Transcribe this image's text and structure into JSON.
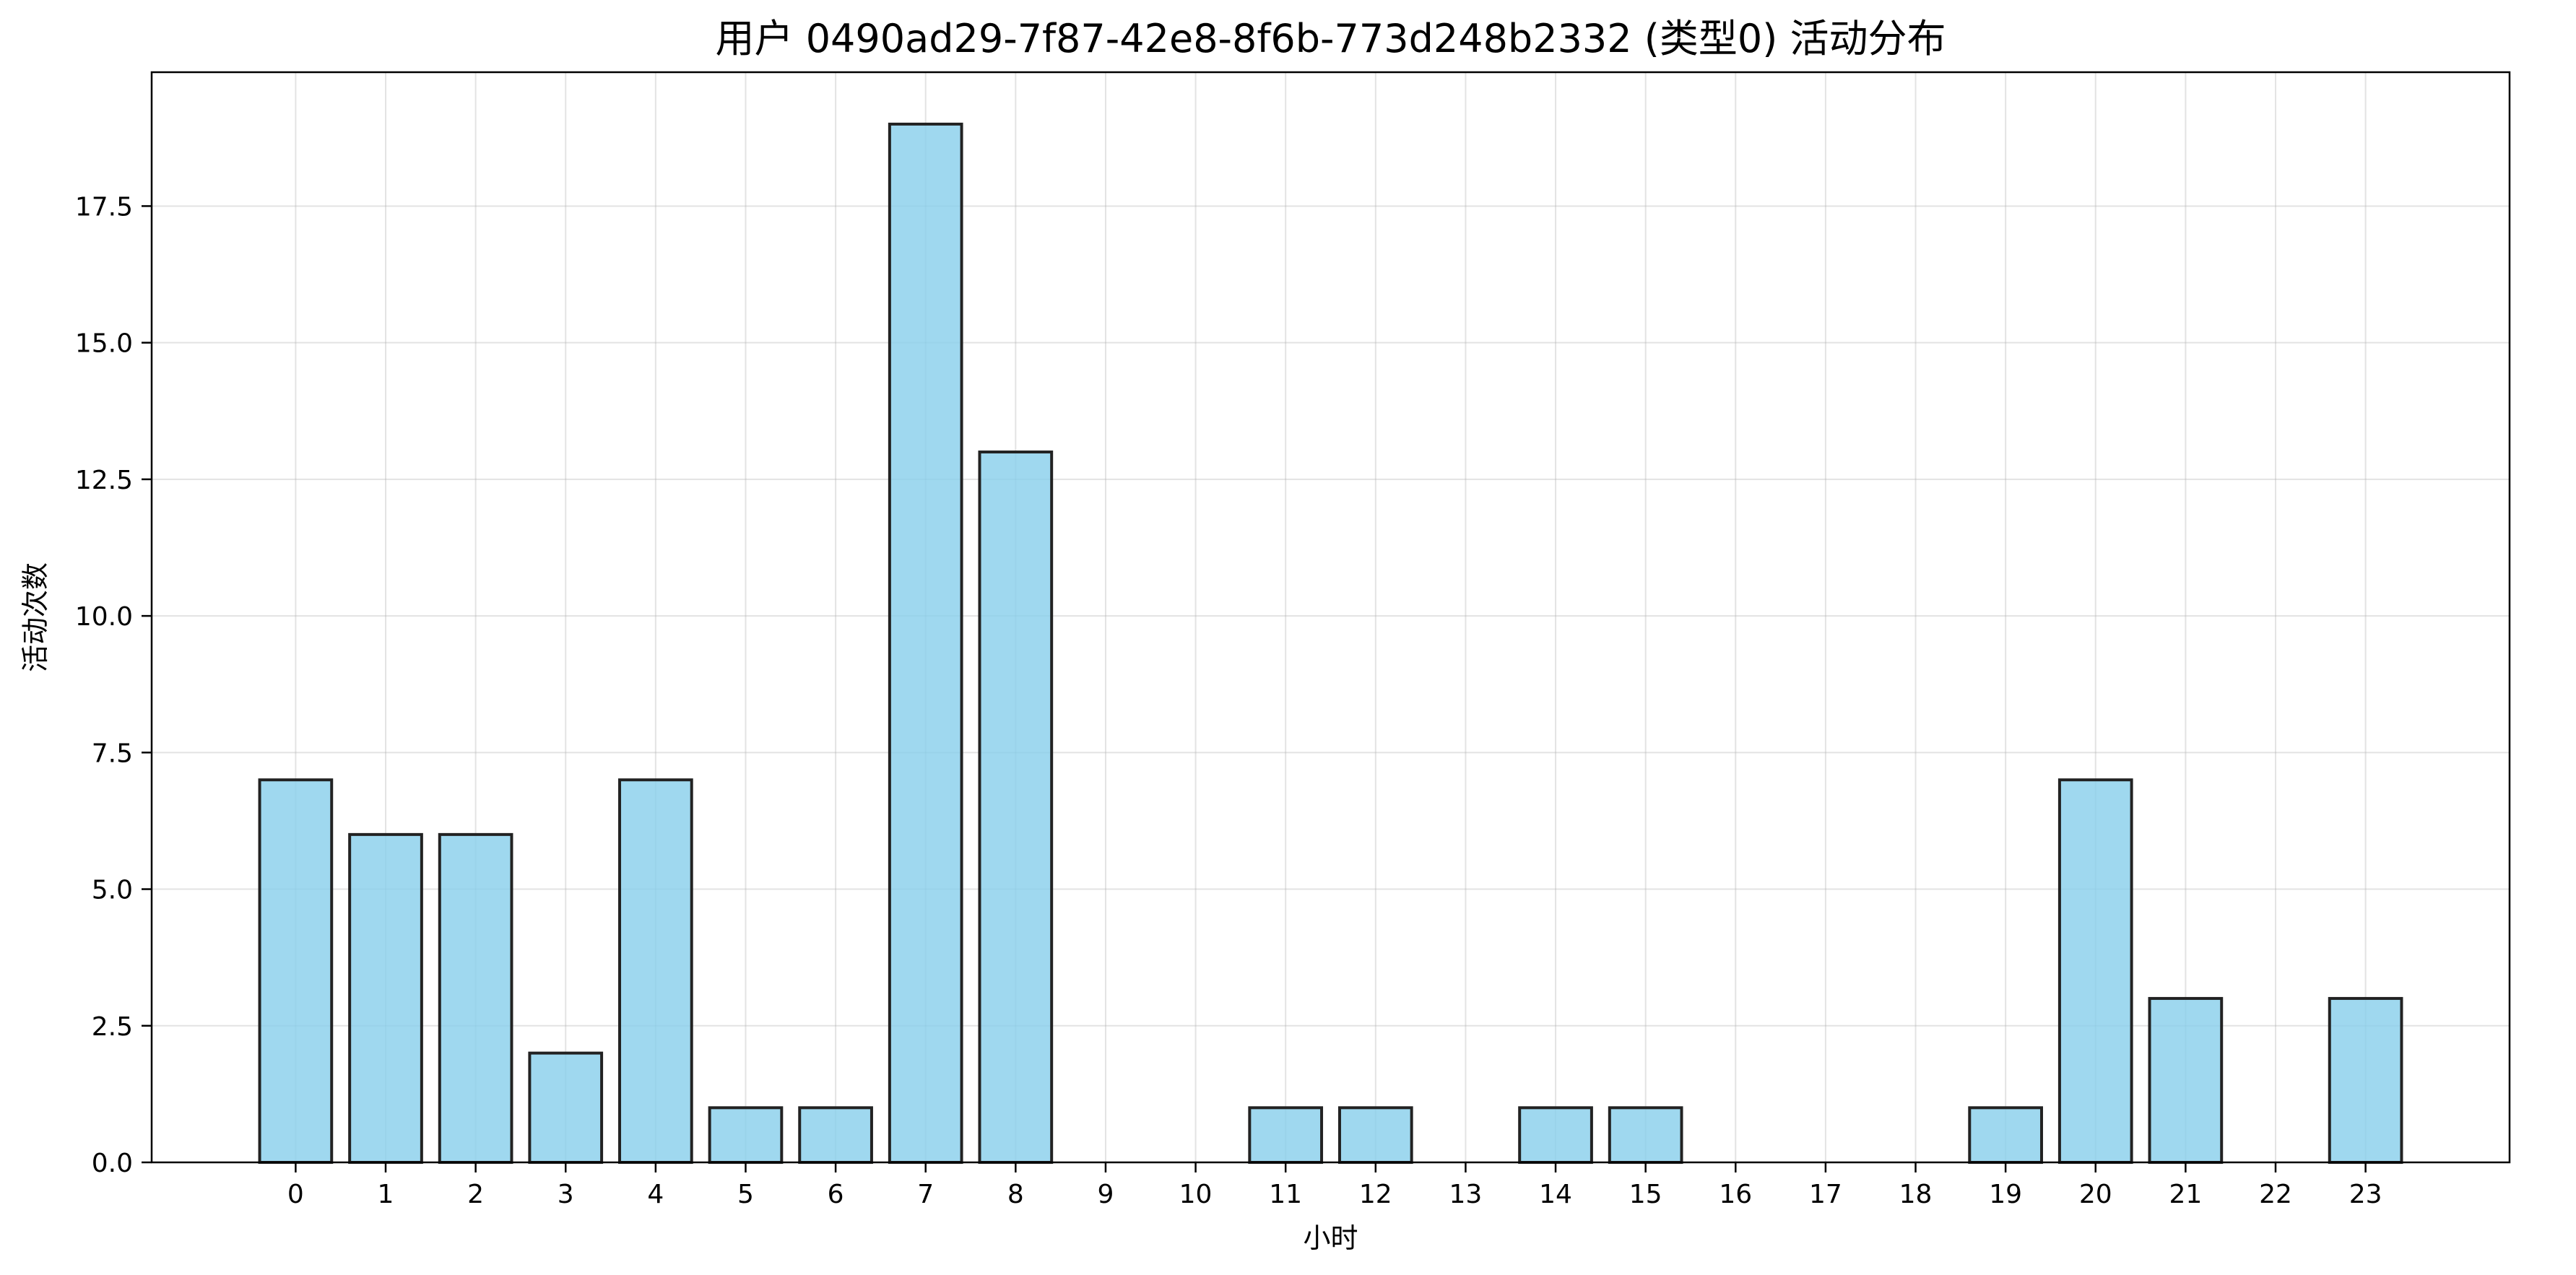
{
  "chart_data": {
    "type": "bar",
    "title": "用户 0490ad29-7f87-42e8-8f6b-773d248b2332 (类型0) 活动分布",
    "xlabel": "小时",
    "ylabel": "活动次数",
    "categories": [
      "0",
      "1",
      "2",
      "3",
      "4",
      "5",
      "6",
      "7",
      "8",
      "9",
      "10",
      "11",
      "12",
      "13",
      "14",
      "15",
      "16",
      "17",
      "18",
      "19",
      "20",
      "21",
      "22",
      "23"
    ],
    "values": [
      7,
      6,
      6,
      2,
      7,
      1,
      1,
      19,
      13,
      0,
      0,
      1,
      1,
      0,
      1,
      1,
      0,
      0,
      0,
      1,
      7,
      3,
      0,
      3
    ],
    "ylim": [
      0,
      19.95
    ],
    "xlim": [
      -1.6,
      24.6
    ],
    "yticks": [
      0.0,
      2.5,
      5.0,
      7.5,
      10.0,
      12.5,
      15.0,
      17.5
    ],
    "ytick_labels": [
      "0.0",
      "2.5",
      "5.0",
      "7.5",
      "10.0",
      "12.5",
      "15.0",
      "17.5"
    ],
    "grid": true,
    "bar_color": "#87ceeb",
    "bar_edge_color": "#222222"
  }
}
